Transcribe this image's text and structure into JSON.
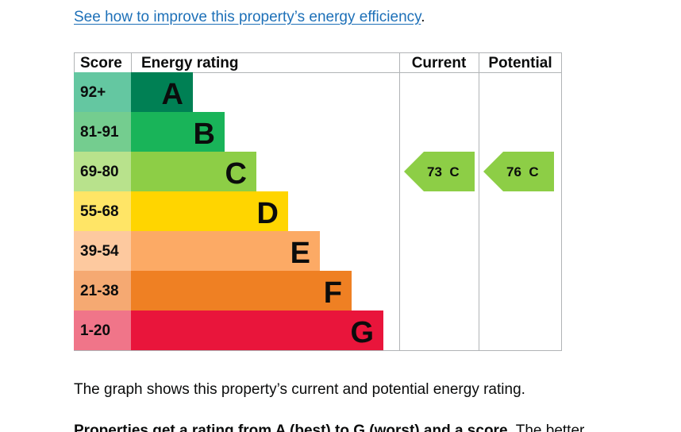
{
  "link": {
    "text": "See how to improve this property’s energy efficiency",
    "suffix": "."
  },
  "chart_data": {
    "type": "bar",
    "headers": {
      "score": "Score",
      "rating": "Energy rating",
      "current": "Current",
      "potential": "Potential"
    },
    "bands": [
      {
        "score": "92+",
        "letter": "A",
        "color": "#008054",
        "score_bg": "#64c7a1"
      },
      {
        "score": "81-91",
        "letter": "B",
        "color": "#19b459",
        "score_bg": "#74cd8f"
      },
      {
        "score": "69-80",
        "letter": "C",
        "color": "#8dce46",
        "score_bg": "#b8e28c"
      },
      {
        "score": "55-68",
        "letter": "D",
        "color": "#ffd500",
        "score_bg": "#ffe566"
      },
      {
        "score": "39-54",
        "letter": "E",
        "color": "#fcaa65",
        "score_bg": "#fdc99f"
      },
      {
        "score": "21-38",
        "letter": "F",
        "color": "#ef8023",
        "score_bg": "#f5a972"
      },
      {
        "score": "1-20",
        "letter": "G",
        "color": "#e9153b",
        "score_bg": "#f07589"
      }
    ],
    "current": {
      "value": 73,
      "band": "C",
      "label": "73  C",
      "color": "#8dce46"
    },
    "potential": {
      "value": 76,
      "band": "C",
      "label": "76  C",
      "color": "#8dce46"
    }
  },
  "caption": "The graph shows this property’s current and potential energy rating.",
  "next_para": {
    "bold": "Properties get a rating from A (best) to G (worst) and a score.",
    "rest": " The better"
  }
}
